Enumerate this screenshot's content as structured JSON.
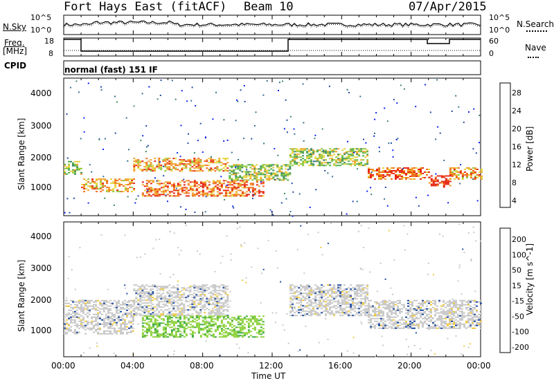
{
  "header": {
    "station": "Fort Hays East (fitACF)",
    "beam": "Beam 10",
    "date": "07/Apr/2015"
  },
  "noise_panel": {
    "left_label": "N.Sky",
    "right_label": "N.Search",
    "left_ticks": [
      "10^5",
      "10^0"
    ],
    "right_ticks": [
      "10^5",
      "10^0"
    ]
  },
  "freq_panel": {
    "left_label_line1": "Freq.",
    "left_label_line2": "[MHz]",
    "left_ticks": [
      "18",
      "8"
    ],
    "right_label": "Nave",
    "right_ticks": [
      "60",
      "0"
    ]
  },
  "cpid_panel": {
    "label": "CPID",
    "value": "normal (fast) 151 IF"
  },
  "colors": {
    "power_scale": [
      "#0a1ef0",
      "#1e46a0",
      "#2e6e8c",
      "#3c8a5a",
      "#4fae4a",
      "#8ec83c",
      "#e6d23c",
      "#f0a028",
      "#f06e1e",
      "#e62814"
    ],
    "velocity_scale": [
      "#1e28b4",
      "#1e4ba0",
      "#2e7a3c",
      "#3caa3c",
      "#8ed23c",
      "#c8c8c8",
      "#f0c83c",
      "#f0a028",
      "#f06e1e",
      "#e63214"
    ]
  },
  "chart_data": [
    {
      "type": "heatmap",
      "title": "Power",
      "xlabel": "Time UT",
      "ylabel": "Slant Range [km]",
      "colorbar_label": "Power [dB]",
      "colorbar_ticks": [
        "28",
        "24",
        "20",
        "16",
        "12",
        "8",
        "4"
      ],
      "y_ticks": [
        "4000",
        "3000",
        "2000",
        "1000"
      ],
      "x_ticks": [
        "00:00",
        "04:00",
        "08:00",
        "12:00",
        "16:00",
        "20:00",
        "00:00"
      ],
      "xlim": [
        0,
        24
      ],
      "ylim": [
        180,
        4500
      ],
      "bands": [
        {
          "t0": 0.0,
          "t1": 1.0,
          "r0": 1500,
          "r1": 1900,
          "level": 16
        },
        {
          "t0": 1.0,
          "t1": 4.0,
          "r0": 950,
          "r1": 1350,
          "level": 20
        },
        {
          "t0": 4.0,
          "t1": 9.5,
          "r0": 1600,
          "r1": 2000,
          "level": 20
        },
        {
          "t0": 4.5,
          "t1": 11.5,
          "r0": 800,
          "r1": 1300,
          "level": 24
        },
        {
          "t0": 9.5,
          "t1": 13.0,
          "r0": 1300,
          "r1": 1800,
          "level": 16
        },
        {
          "t0": 13.0,
          "t1": 17.5,
          "r0": 1750,
          "r1": 2300,
          "level": 16
        },
        {
          "t0": 17.5,
          "t1": 21.0,
          "r0": 1350,
          "r1": 1700,
          "level": 24
        },
        {
          "t0": 21.0,
          "t1": 22.2,
          "r0": 1100,
          "r1": 1450,
          "level": 28
        },
        {
          "t0": 22.2,
          "t1": 24.0,
          "r0": 1350,
          "r1": 1700,
          "level": 20
        }
      ]
    },
    {
      "type": "heatmap",
      "title": "Velocity",
      "xlabel": "Time UT",
      "ylabel": "Slant Range [km]",
      "colorbar_label": "Velocity [m s^-1]",
      "colorbar_ticks": [
        "200",
        "100",
        "50",
        "15",
        "-15",
        "-50",
        "-100",
        "-200"
      ],
      "y_ticks": [
        "4000",
        "3000",
        "2000",
        "1000"
      ],
      "x_ticks": [
        "00:00",
        "04:00",
        "08:00",
        "12:00",
        "16:00",
        "20:00",
        "00:00"
      ],
      "xlim": [
        0,
        24
      ],
      "ylim": [
        180,
        4500
      ],
      "bands": [
        {
          "t0": 0.0,
          "t1": 4.0,
          "r0": 900,
          "r1": 2000,
          "velocity": 0
        },
        {
          "t0": 4.0,
          "t1": 9.5,
          "r0": 1500,
          "r1": 2500,
          "velocity": 0
        },
        {
          "t0": 4.5,
          "t1": 11.5,
          "r0": 800,
          "r1": 1500,
          "velocity": 40
        },
        {
          "t0": 13.0,
          "t1": 17.5,
          "r0": 1500,
          "r1": 2500,
          "velocity": 0
        },
        {
          "t0": 17.5,
          "t1": 24.0,
          "r0": 1100,
          "r1": 2000,
          "velocity": 0
        }
      ]
    }
  ],
  "xaxis": {
    "label": "Time UT"
  }
}
